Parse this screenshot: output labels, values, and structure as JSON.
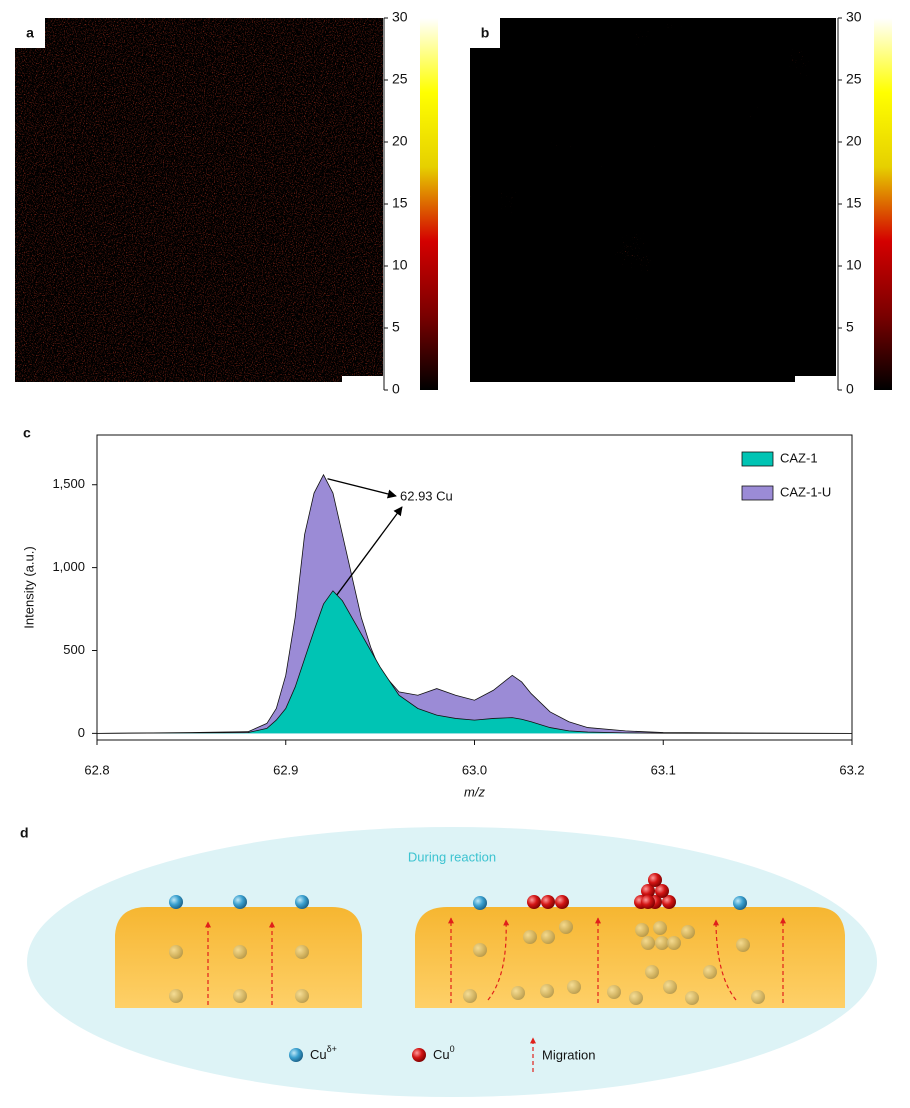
{
  "chart_data": [
    {
      "type": "heatmap",
      "panel_label": "a",
      "clim": [
        0,
        30
      ],
      "cticks": [
        0,
        5,
        10,
        15,
        20,
        25,
        30
      ],
      "colormap": [
        "#000000",
        "#7a0000",
        "#d40000",
        "#e6d000",
        "#ffff00",
        "#ffffff"
      ]
    },
    {
      "type": "heatmap",
      "panel_label": "b",
      "clim": [
        0,
        30
      ],
      "cticks": [
        0,
        5,
        10,
        15,
        20,
        25,
        30
      ],
      "colormap": [
        "#000000",
        "#7a0000",
        "#d40000",
        "#e6d000",
        "#ffff00",
        "#ffffff"
      ]
    },
    {
      "type": "area",
      "panel_label": "c",
      "xlabel": "m/z",
      "ylabel": "Intensity (a.u.)",
      "x": [
        62.8,
        62.85,
        62.88,
        62.89,
        62.895,
        62.9,
        62.905,
        62.91,
        62.915,
        62.92,
        62.925,
        62.93,
        62.935,
        62.94,
        62.945,
        62.95,
        62.96,
        62.97,
        62.98,
        62.99,
        63.0,
        63.01,
        63.02,
        63.025,
        63.03,
        63.04,
        63.05,
        63.06,
        63.08,
        63.1,
        63.15,
        63.2
      ],
      "series": [
        {
          "name": "CAZ-1-U",
          "color": "#9b8bd6",
          "values": [
            0,
            5,
            10,
            60,
            150,
            350,
            700,
            1200,
            1450,
            1560,
            1450,
            1200,
            950,
            700,
            520,
            380,
            250,
            230,
            270,
            230,
            200,
            260,
            350,
            310,
            240,
            130,
            70,
            35,
            15,
            5,
            2,
            0
          ]
        },
        {
          "name": "CAZ-1",
          "color": "#00c4b4",
          "values": [
            0,
            3,
            5,
            30,
            80,
            150,
            280,
            450,
            620,
            780,
            860,
            800,
            700,
            600,
            500,
            400,
            230,
            150,
            110,
            90,
            80,
            90,
            95,
            85,
            70,
            35,
            15,
            8,
            3,
            1,
            0,
            0
          ]
        }
      ],
      "legend_order": [
        1,
        0
      ],
      "legend_position": "upper right",
      "annotation": "62.93 Cu",
      "xlim": [
        62.8,
        63.2
      ],
      "xticks": [
        62.8,
        62.9,
        {
          "value": 63.0,
          "label": "63.0"
        },
        63.1,
        63.2
      ],
      "ylim": [
        -40,
        1800
      ],
      "yticks": [
        0,
        500,
        {
          "value": 1000,
          "label": "1,000"
        },
        {
          "value": 1500,
          "label": "1,500"
        }
      ]
    }
  ],
  "diagram": {
    "panel_label": "d",
    "title": "During reaction",
    "legend": [
      {
        "text": "Cu",
        "sup": "δ+"
      },
      {
        "text": "Cu",
        "sup": "0"
      },
      {
        "text": "Migration"
      }
    ]
  }
}
